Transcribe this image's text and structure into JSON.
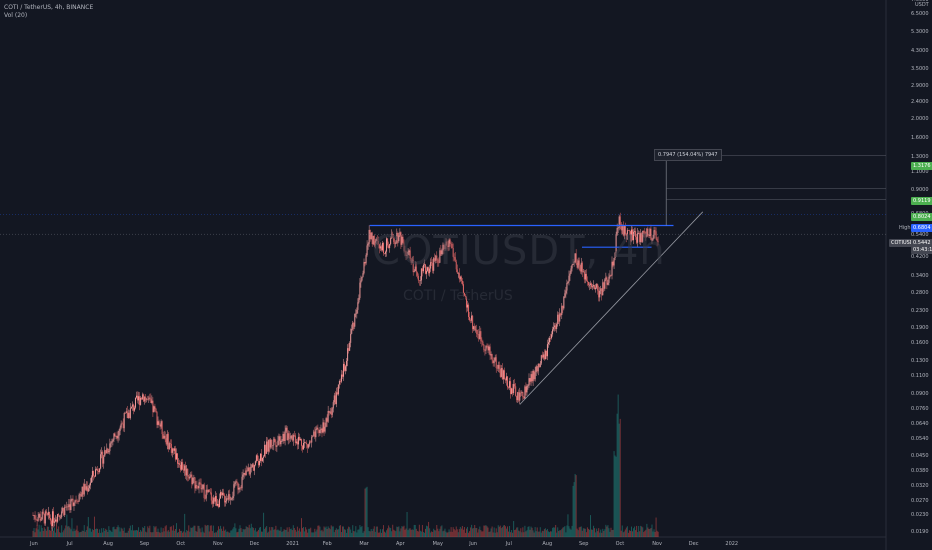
{
  "header": {
    "symbol_line": "COTI / TetherUS, 4h, BINANCE",
    "indicator_line": "Vol (20)"
  },
  "watermark": {
    "ticker": "COTIUSDT, 4h",
    "name": "COTI / TetherUS"
  },
  "measure_label": "0.7947 (154.04%) 7947",
  "price_tags": {
    "target_high": "1.3176",
    "target_mid": "0.9119",
    "target_low": "0.8024",
    "high_label": "High",
    "high_value": "0.6804",
    "last_symbol": "COTIUSDT",
    "last_value": "0.5442",
    "countdown": "03:43:18"
  },
  "axis_unit": "USDT",
  "colors": {
    "bg": "#131722",
    "up": "#ef9a9a",
    "down": "#e06666",
    "level": "#2962ff",
    "trend": "#9598a1",
    "target": "#4caf50"
  },
  "chart_data": {
    "type": "candlestick",
    "title": "COTIUSDT, 4h",
    "y_scale": "log",
    "ylim": [
      0.018,
      7.6
    ],
    "y_ticks": [
      7.6,
      6.5,
      5.3,
      4.3,
      3.5,
      2.9,
      2.4,
      2.0,
      1.6,
      1.3,
      1.1,
      0.9,
      0.68,
      0.54,
      0.42,
      0.34,
      0.28,
      0.23,
      0.19,
      0.16,
      0.13,
      0.11,
      0.09,
      0.076,
      0.064,
      0.054,
      0.045,
      0.038,
      0.032,
      0.027,
      0.023,
      0.019
    ],
    "x_ticks": [
      "Jun",
      "Jul",
      "Aug",
      "Sep",
      "Oct",
      "Nov",
      "Dec",
      "2021",
      "Feb",
      "Mar",
      "Apr",
      "May",
      "Jun",
      "Jul",
      "Aug",
      "Sep",
      "Oct",
      "Nov",
      "Dec",
      "2022"
    ],
    "x_tick_months": [
      0,
      1,
      2,
      3,
      4,
      5,
      6,
      7,
      8,
      9,
      10,
      11,
      12,
      13,
      14,
      15,
      16,
      17,
      18,
      19
    ],
    "price_path": [
      {
        "m": 0.0,
        "p": 0.023
      },
      {
        "m": 0.5,
        "p": 0.022
      },
      {
        "m": 1.0,
        "p": 0.026
      },
      {
        "m": 1.5,
        "p": 0.032
      },
      {
        "m": 2.0,
        "p": 0.048
      },
      {
        "m": 2.5,
        "p": 0.068
      },
      {
        "m": 3.0,
        "p": 0.09
      },
      {
        "m": 3.3,
        "p": 0.075
      },
      {
        "m": 3.6,
        "p": 0.056
      },
      {
        "m": 4.0,
        "p": 0.042
      },
      {
        "m": 4.5,
        "p": 0.032
      },
      {
        "m": 5.0,
        "p": 0.027
      },
      {
        "m": 5.4,
        "p": 0.029
      },
      {
        "m": 6.0,
        "p": 0.04
      },
      {
        "m": 6.5,
        "p": 0.052
      },
      {
        "m": 7.0,
        "p": 0.058
      },
      {
        "m": 7.5,
        "p": 0.05
      },
      {
        "m": 8.0,
        "p": 0.065
      },
      {
        "m": 8.4,
        "p": 0.1
      },
      {
        "m": 8.8,
        "p": 0.22
      },
      {
        "m": 9.2,
        "p": 0.55
      },
      {
        "m": 9.5,
        "p": 0.45
      },
      {
        "m": 10.0,
        "p": 0.55
      },
      {
        "m": 10.5,
        "p": 0.34
      },
      {
        "m": 11.0,
        "p": 0.4
      },
      {
        "m": 11.4,
        "p": 0.5
      },
      {
        "m": 11.7,
        "p": 0.3
      },
      {
        "m": 12.0,
        "p": 0.2
      },
      {
        "m": 12.5,
        "p": 0.14
      },
      {
        "m": 13.0,
        "p": 0.1
      },
      {
        "m": 13.3,
        "p": 0.085
      },
      {
        "m": 14.0,
        "p": 0.14
      },
      {
        "m": 14.5,
        "p": 0.25
      },
      {
        "m": 14.8,
        "p": 0.42
      },
      {
        "m": 15.0,
        "p": 0.36
      },
      {
        "m": 15.5,
        "p": 0.28
      },
      {
        "m": 15.8,
        "p": 0.36
      },
      {
        "m": 16.0,
        "p": 0.62
      },
      {
        "m": 16.2,
        "p": 0.55
      },
      {
        "m": 16.5,
        "p": 0.52
      },
      {
        "m": 16.8,
        "p": 0.55
      },
      {
        "m": 17.1,
        "p": 0.54
      }
    ],
    "volume_spikes": [
      {
        "m": 9.1,
        "v": 0.4
      },
      {
        "m": 14.8,
        "v": 0.5
      },
      {
        "m": 15.9,
        "v": 0.75
      },
      {
        "m": 16.0,
        "v": 1.0
      }
    ],
    "levels": {
      "resistance": 0.6,
      "support": 0.47,
      "measure_top": 1.3176
    },
    "targets": [
      1.3176,
      0.9119,
      0.8024
    ],
    "high": 0.6804,
    "last": 0.5442
  }
}
